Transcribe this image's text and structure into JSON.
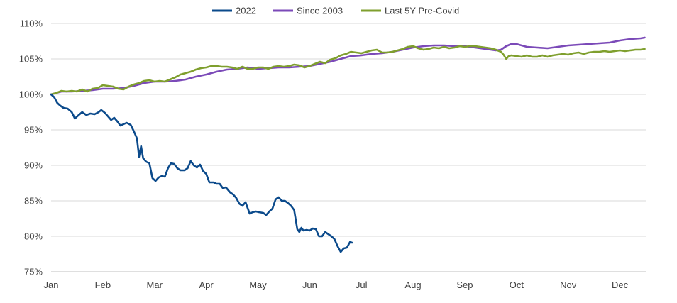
{
  "chart_data": {
    "type": "line",
    "title": "",
    "xlabel": "",
    "ylabel": "",
    "x_tick_labels": [
      "Jan",
      "Feb",
      "Mar",
      "Apr",
      "May",
      "Jun",
      "Jul",
      "Aug",
      "Sep",
      "Oct",
      "Nov",
      "Dec"
    ],
    "y_tick_labels": [
      "75%",
      "80%",
      "85%",
      "90%",
      "95%",
      "100%",
      "105%",
      "110%"
    ],
    "ylim": [
      75,
      110
    ],
    "xlim": [
      0,
      11.5
    ],
    "grid": "horizontal",
    "legend_position": "top-center",
    "series": [
      {
        "name": "2022",
        "color": "#0B4A8B",
        "points": [
          [
            0.0,
            100.0
          ],
          [
            0.06,
            99.6
          ],
          [
            0.12,
            98.8
          ],
          [
            0.18,
            98.4
          ],
          [
            0.24,
            98.1
          ],
          [
            0.32,
            98.0
          ],
          [
            0.4,
            97.5
          ],
          [
            0.46,
            96.6
          ],
          [
            0.52,
            97.0
          ],
          [
            0.6,
            97.5
          ],
          [
            0.68,
            97.1
          ],
          [
            0.76,
            97.3
          ],
          [
            0.84,
            97.2
          ],
          [
            0.92,
            97.5
          ],
          [
            0.97,
            97.8
          ],
          [
            1.04,
            97.4
          ],
          [
            1.1,
            96.9
          ],
          [
            1.16,
            96.4
          ],
          [
            1.22,
            96.7
          ],
          [
            1.28,
            96.2
          ],
          [
            1.34,
            95.6
          ],
          [
            1.4,
            95.8
          ],
          [
            1.46,
            96.0
          ],
          [
            1.54,
            95.7
          ],
          [
            1.6,
            94.8
          ],
          [
            1.66,
            93.8
          ],
          [
            1.7,
            91.2
          ],
          [
            1.74,
            92.7
          ],
          [
            1.78,
            91.0
          ],
          [
            1.84,
            90.5
          ],
          [
            1.9,
            90.3
          ],
          [
            1.96,
            88.2
          ],
          [
            2.02,
            87.8
          ],
          [
            2.08,
            88.3
          ],
          [
            2.14,
            88.5
          ],
          [
            2.2,
            88.4
          ],
          [
            2.26,
            89.6
          ],
          [
            2.32,
            90.3
          ],
          [
            2.38,
            90.2
          ],
          [
            2.44,
            89.6
          ],
          [
            2.5,
            89.3
          ],
          [
            2.58,
            89.3
          ],
          [
            2.64,
            89.6
          ],
          [
            2.7,
            90.6
          ],
          [
            2.76,
            90.0
          ],
          [
            2.82,
            89.7
          ],
          [
            2.88,
            90.1
          ],
          [
            2.94,
            89.2
          ],
          [
            3.0,
            88.8
          ],
          [
            3.06,
            87.6
          ],
          [
            3.14,
            87.6
          ],
          [
            3.2,
            87.4
          ],
          [
            3.26,
            87.4
          ],
          [
            3.32,
            86.8
          ],
          [
            3.38,
            86.9
          ],
          [
            3.46,
            86.2
          ],
          [
            3.52,
            85.9
          ],
          [
            3.58,
            85.4
          ],
          [
            3.64,
            84.6
          ],
          [
            3.7,
            84.3
          ],
          [
            3.76,
            84.8
          ],
          [
            3.84,
            83.2
          ],
          [
            3.9,
            83.4
          ],
          [
            3.96,
            83.5
          ],
          [
            4.02,
            83.4
          ],
          [
            4.1,
            83.3
          ],
          [
            4.16,
            83.0
          ],
          [
            4.22,
            83.5
          ],
          [
            4.28,
            83.9
          ],
          [
            4.34,
            85.2
          ],
          [
            4.4,
            85.5
          ],
          [
            4.46,
            85.0
          ],
          [
            4.52,
            85.0
          ],
          [
            4.58,
            84.7
          ],
          [
            4.64,
            84.3
          ],
          [
            4.7,
            83.7
          ],
          [
            4.76,
            81.0
          ],
          [
            4.8,
            80.6
          ],
          [
            4.84,
            81.2
          ],
          [
            4.88,
            80.8
          ],
          [
            4.94,
            80.9
          ],
          [
            5.0,
            80.8
          ],
          [
            5.06,
            81.1
          ],
          [
            5.12,
            81.0
          ],
          [
            5.18,
            80.0
          ],
          [
            5.24,
            80.0
          ],
          [
            5.3,
            80.6
          ],
          [
            5.36,
            80.3
          ],
          [
            5.42,
            80.0
          ],
          [
            5.48,
            79.6
          ],
          [
            5.54,
            78.6
          ],
          [
            5.6,
            77.8
          ],
          [
            5.66,
            78.3
          ],
          [
            5.72,
            78.4
          ],
          [
            5.78,
            79.2
          ],
          [
            5.82,
            79.1
          ]
        ]
      },
      {
        "name": "Since 2003",
        "color": "#7B4AB8",
        "points": [
          [
            0.0,
            100.0
          ],
          [
            0.2,
            100.4
          ],
          [
            0.4,
            100.4
          ],
          [
            0.6,
            100.5
          ],
          [
            0.8,
            100.6
          ],
          [
            1.0,
            100.8
          ],
          [
            1.2,
            100.8
          ],
          [
            1.4,
            100.9
          ],
          [
            1.6,
            101.2
          ],
          [
            1.8,
            101.6
          ],
          [
            2.0,
            101.8
          ],
          [
            2.2,
            101.8
          ],
          [
            2.4,
            101.9
          ],
          [
            2.6,
            102.1
          ],
          [
            2.8,
            102.5
          ],
          [
            3.0,
            102.8
          ],
          [
            3.2,
            103.2
          ],
          [
            3.4,
            103.5
          ],
          [
            3.6,
            103.6
          ],
          [
            3.8,
            103.8
          ],
          [
            4.0,
            103.6
          ],
          [
            4.2,
            103.7
          ],
          [
            4.4,
            103.8
          ],
          [
            4.6,
            103.8
          ],
          [
            4.8,
            103.9
          ],
          [
            5.0,
            104.0
          ],
          [
            5.2,
            104.3
          ],
          [
            5.4,
            104.6
          ],
          [
            5.6,
            105.0
          ],
          [
            5.8,
            105.4
          ],
          [
            6.0,
            105.5
          ],
          [
            6.2,
            105.7
          ],
          [
            6.4,
            105.8
          ],
          [
            6.6,
            106.0
          ],
          [
            6.8,
            106.3
          ],
          [
            7.0,
            106.6
          ],
          [
            7.2,
            106.8
          ],
          [
            7.4,
            106.9
          ],
          [
            7.6,
            106.9
          ],
          [
            7.8,
            106.8
          ],
          [
            8.0,
            106.8
          ],
          [
            8.2,
            106.6
          ],
          [
            8.4,
            106.4
          ],
          [
            8.6,
            106.2
          ],
          [
            8.7,
            106.3
          ],
          [
            8.8,
            106.8
          ],
          [
            8.9,
            107.1
          ],
          [
            9.0,
            107.1
          ],
          [
            9.1,
            106.9
          ],
          [
            9.2,
            106.7
          ],
          [
            9.4,
            106.6
          ],
          [
            9.6,
            106.5
          ],
          [
            9.8,
            106.7
          ],
          [
            10.0,
            106.9
          ],
          [
            10.2,
            107.0
          ],
          [
            10.4,
            107.1
          ],
          [
            10.6,
            107.2
          ],
          [
            10.8,
            107.3
          ],
          [
            11.0,
            107.6
          ],
          [
            11.2,
            107.8
          ],
          [
            11.4,
            107.9
          ],
          [
            11.48,
            108.0
          ]
        ]
      },
      {
        "name": "Last 5Y Pre-Covid",
        "color": "#7F9F2E",
        "points": [
          [
            0.0,
            100.0
          ],
          [
            0.1,
            100.2
          ],
          [
            0.2,
            100.5
          ],
          [
            0.3,
            100.4
          ],
          [
            0.4,
            100.5
          ],
          [
            0.5,
            100.4
          ],
          [
            0.6,
            100.7
          ],
          [
            0.7,
            100.4
          ],
          [
            0.8,
            100.8
          ],
          [
            0.9,
            100.9
          ],
          [
            1.0,
            101.3
          ],
          [
            1.1,
            101.2
          ],
          [
            1.2,
            101.1
          ],
          [
            1.3,
            100.8
          ],
          [
            1.4,
            100.7
          ],
          [
            1.5,
            101.1
          ],
          [
            1.6,
            101.4
          ],
          [
            1.7,
            101.6
          ],
          [
            1.8,
            101.9
          ],
          [
            1.9,
            102.0
          ],
          [
            2.0,
            101.8
          ],
          [
            2.1,
            101.9
          ],
          [
            2.2,
            101.8
          ],
          [
            2.3,
            102.1
          ],
          [
            2.4,
            102.4
          ],
          [
            2.5,
            102.8
          ],
          [
            2.6,
            103.0
          ],
          [
            2.7,
            103.2
          ],
          [
            2.8,
            103.5
          ],
          [
            2.9,
            103.7
          ],
          [
            3.0,
            103.8
          ],
          [
            3.1,
            104.0
          ],
          [
            3.2,
            104.0
          ],
          [
            3.3,
            103.9
          ],
          [
            3.4,
            103.9
          ],
          [
            3.5,
            103.8
          ],
          [
            3.6,
            103.6
          ],
          [
            3.7,
            103.9
          ],
          [
            3.8,
            103.6
          ],
          [
            3.9,
            103.6
          ],
          [
            4.0,
            103.8
          ],
          [
            4.1,
            103.8
          ],
          [
            4.2,
            103.6
          ],
          [
            4.3,
            103.9
          ],
          [
            4.4,
            104.0
          ],
          [
            4.5,
            103.9
          ],
          [
            4.6,
            104.0
          ],
          [
            4.7,
            104.2
          ],
          [
            4.8,
            104.1
          ],
          [
            4.9,
            103.8
          ],
          [
            5.0,
            104.0
          ],
          [
            5.1,
            104.3
          ],
          [
            5.2,
            104.6
          ],
          [
            5.3,
            104.4
          ],
          [
            5.4,
            104.9
          ],
          [
            5.5,
            105.1
          ],
          [
            5.6,
            105.5
          ],
          [
            5.7,
            105.7
          ],
          [
            5.8,
            106.0
          ],
          [
            5.9,
            105.9
          ],
          [
            6.0,
            105.8
          ],
          [
            6.1,
            106.0
          ],
          [
            6.2,
            106.2
          ],
          [
            6.3,
            106.3
          ],
          [
            6.4,
            105.9
          ],
          [
            6.5,
            105.9
          ],
          [
            6.6,
            106.0
          ],
          [
            6.7,
            106.2
          ],
          [
            6.8,
            106.4
          ],
          [
            6.9,
            106.7
          ],
          [
            7.0,
            106.8
          ],
          [
            7.1,
            106.5
          ],
          [
            7.2,
            106.3
          ],
          [
            7.3,
            106.4
          ],
          [
            7.4,
            106.6
          ],
          [
            7.5,
            106.5
          ],
          [
            7.6,
            106.7
          ],
          [
            7.7,
            106.5
          ],
          [
            7.8,
            106.6
          ],
          [
            7.9,
            106.8
          ],
          [
            8.0,
            106.7
          ],
          [
            8.1,
            106.8
          ],
          [
            8.2,
            106.8
          ],
          [
            8.3,
            106.7
          ],
          [
            8.4,
            106.6
          ],
          [
            8.5,
            106.5
          ],
          [
            8.6,
            106.3
          ],
          [
            8.7,
            106.0
          ],
          [
            8.75,
            105.6
          ],
          [
            8.8,
            105.0
          ],
          [
            8.85,
            105.4
          ],
          [
            8.9,
            105.5
          ],
          [
            9.0,
            105.4
          ],
          [
            9.1,
            105.3
          ],
          [
            9.2,
            105.5
          ],
          [
            9.3,
            105.3
          ],
          [
            9.4,
            105.3
          ],
          [
            9.5,
            105.5
          ],
          [
            9.6,
            105.3
          ],
          [
            9.7,
            105.5
          ],
          [
            9.8,
            105.6
          ],
          [
            9.9,
            105.7
          ],
          [
            10.0,
            105.6
          ],
          [
            10.1,
            105.8
          ],
          [
            10.2,
            105.9
          ],
          [
            10.3,
            105.7
          ],
          [
            10.4,
            105.9
          ],
          [
            10.5,
            106.0
          ],
          [
            10.6,
            106.0
          ],
          [
            10.7,
            106.1
          ],
          [
            10.8,
            106.0
          ],
          [
            10.9,
            106.1
          ],
          [
            11.0,
            106.2
          ],
          [
            11.1,
            106.1
          ],
          [
            11.2,
            106.2
          ],
          [
            11.3,
            106.3
          ],
          [
            11.4,
            106.3
          ],
          [
            11.48,
            106.4
          ]
        ]
      }
    ]
  }
}
